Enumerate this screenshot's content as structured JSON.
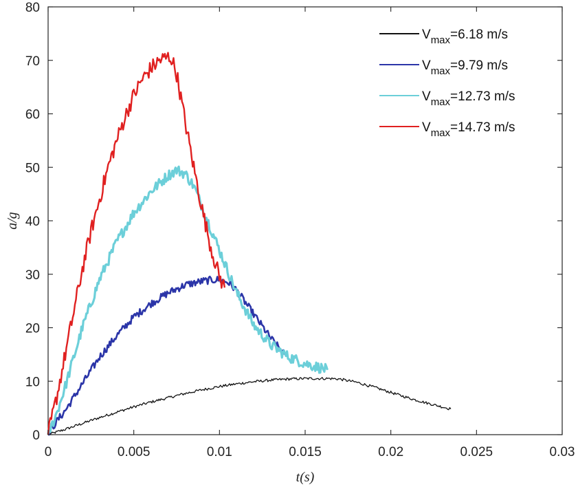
{
  "chart_data": {
    "type": "line",
    "title": "",
    "xlabel": "t(s)",
    "ylabel": "a/g",
    "xlim": [
      0,
      0.03
    ],
    "ylim": [
      0,
      80
    ],
    "xticks": [
      0,
      0.005,
      0.01,
      0.015,
      0.02,
      0.025,
      0.03
    ],
    "xtick_labels": [
      "0",
      "0.005",
      "0.01",
      "0.015",
      "0.02",
      "0.025",
      "0.03"
    ],
    "yticks": [
      0,
      10,
      20,
      30,
      40,
      50,
      60,
      70,
      80
    ],
    "ytick_labels": [
      "0",
      "10",
      "20",
      "30",
      "40",
      "50",
      "60",
      "70",
      "80"
    ],
    "grid": false,
    "legend_position": "top-right",
    "series": [
      {
        "name": "V_max=6.18 m/s",
        "legend_main": "V",
        "legend_sub": "max",
        "legend_value": "=6.18 m/s",
        "color": "#111111",
        "noise": 0.25,
        "width": 1.3,
        "x": [
          0,
          0.001,
          0.002,
          0.003,
          0.004,
          0.005,
          0.006,
          0.007,
          0.008,
          0.009,
          0.01,
          0.011,
          0.012,
          0.013,
          0.014,
          0.015,
          0.016,
          0.0165,
          0.017,
          0.018,
          0.019,
          0.02,
          0.021,
          0.022,
          0.023,
          0.0235
        ],
        "y": [
          0,
          1.0,
          2.1,
          3.2,
          4.2,
          5.2,
          6.1,
          6.9,
          7.7,
          8.4,
          9.0,
          9.5,
          9.9,
          10.2,
          10.4,
          10.5,
          10.5,
          10.5,
          10.4,
          9.8,
          8.9,
          7.9,
          6.9,
          6.0,
          5.2,
          4.8
        ]
      },
      {
        "name": "V_max=9.79 m/s",
        "legend_main": "V",
        "legend_sub": "max",
        "legend_value": "=9.79 m/s",
        "color": "#2b35a8",
        "noise": 0.7,
        "width": 2.6,
        "x": [
          0,
          0.0005,
          0.001,
          0.002,
          0.003,
          0.004,
          0.005,
          0.006,
          0.007,
          0.008,
          0.009,
          0.0095,
          0.01,
          0.0105,
          0.011,
          0.012,
          0.013,
          0.0138
        ],
        "y": [
          0,
          2.5,
          4.5,
          9.5,
          14.5,
          18.5,
          22.0,
          24.5,
          26.5,
          28.0,
          28.7,
          28.9,
          29.0,
          28.5,
          27.0,
          22.5,
          18.0,
          15.0
        ]
      },
      {
        "name": "V_max=12.73 m/s",
        "legend_main": "V",
        "legend_sub": "max",
        "legend_value": "=12.73 m/s",
        "color": "#6ccfd9",
        "noise": 1.0,
        "width": 3.2,
        "x": [
          0,
          0.0005,
          0.001,
          0.002,
          0.003,
          0.004,
          0.005,
          0.006,
          0.007,
          0.0075,
          0.008,
          0.0085,
          0.009,
          0.01,
          0.011,
          0.012,
          0.013,
          0.014,
          0.015,
          0.016,
          0.0163
        ],
        "y": [
          0,
          4,
          9,
          20,
          29,
          36,
          41.5,
          45.5,
          48.5,
          49.5,
          48.8,
          46.5,
          42.5,
          34.5,
          26.5,
          20.5,
          16.8,
          14.6,
          13.3,
          12.4,
          12.1
        ]
      },
      {
        "name": "V_max=14.73 m/s",
        "legend_main": "V",
        "legend_sub": "max",
        "legend_value": "=14.73 m/s",
        "color": "#e02020",
        "noise": 1.5,
        "width": 2.4,
        "x": [
          0,
          0.0005,
          0.001,
          0.0015,
          0.002,
          0.0025,
          0.003,
          0.0035,
          0.004,
          0.0045,
          0.005,
          0.0055,
          0.006,
          0.0065,
          0.007,
          0.0072,
          0.0075,
          0.008,
          0.0085,
          0.009,
          0.0095,
          0.01,
          0.0103
        ],
        "y": [
          0,
          7,
          15,
          23,
          31,
          38,
          44,
          50,
          55,
          59.5,
          63.5,
          66.5,
          68.5,
          70,
          70.6,
          70.4,
          67.5,
          58.5,
          50,
          42,
          35,
          29.5,
          27.5
        ]
      }
    ]
  }
}
